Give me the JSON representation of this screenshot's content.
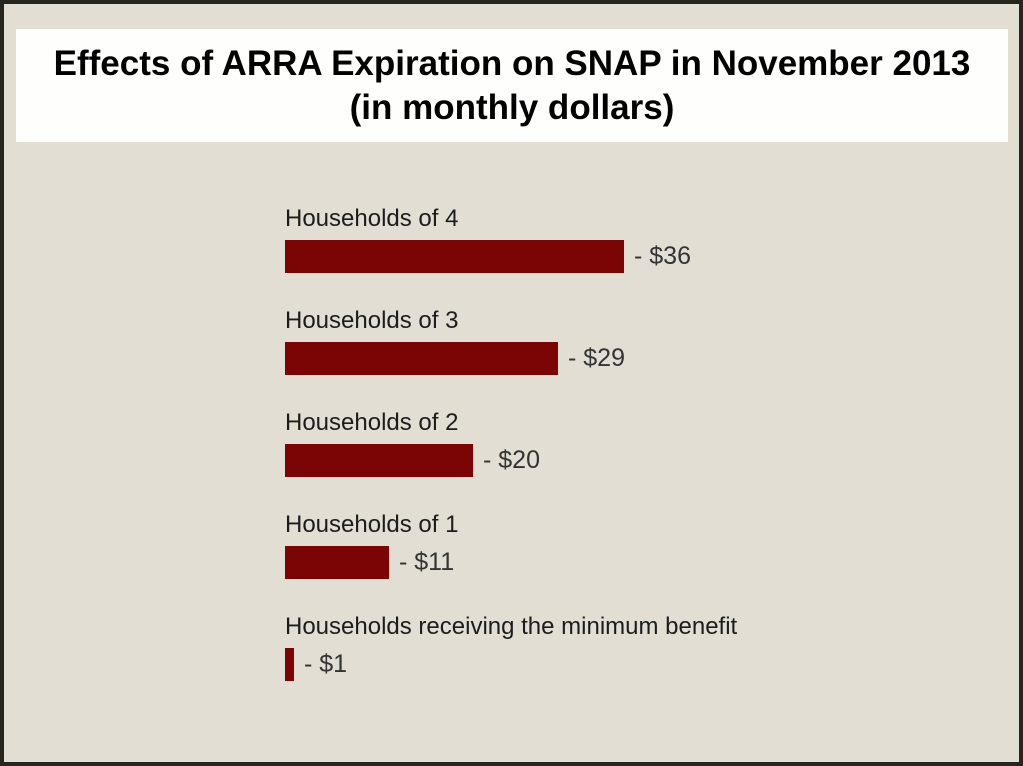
{
  "title": {
    "line1": "Effects of ARRA Expiration on SNAP in November 2013",
    "line2": "(in monthly dollars)"
  },
  "chart_data": {
    "type": "bar",
    "orientation": "horizontal",
    "title": "Effects of ARRA Expiration on SNAP in November 2013 (in monthly dollars)",
    "categories": [
      "Households of 4",
      "Households of 3",
      "Households of 2",
      "Households of 1",
      "Households receiving the minimum benefit"
    ],
    "values": [
      -36,
      -29,
      -20,
      -11,
      -1
    ],
    "value_labels": [
      "- $36",
      "- $29",
      "- $20",
      "- $11",
      "- $1"
    ],
    "xlabel": "",
    "ylabel": "",
    "xlim": [
      0,
      36
    ],
    "grid": false,
    "legend": false,
    "bar_color": "#7B0505",
    "background_color": "#E2DED3",
    "title_background_color": "#FEFEFD",
    "label_color": "#1C1C1C",
    "value_color": "#333333"
  }
}
